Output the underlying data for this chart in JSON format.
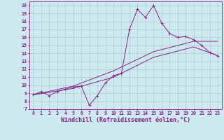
{
  "bg_color": "#cde8ee",
  "line_color": "#882288",
  "grid_color": "#aacccc",
  "xlim": [
    -0.5,
    23.5
  ],
  "ylim": [
    7,
    20.5
  ],
  "xticks": [
    0,
    1,
    2,
    3,
    4,
    5,
    6,
    7,
    8,
    9,
    10,
    11,
    12,
    13,
    14,
    15,
    16,
    17,
    18,
    19,
    20,
    21,
    22,
    23
  ],
  "yticks": [
    7,
    8,
    9,
    10,
    11,
    12,
    13,
    14,
    15,
    16,
    17,
    18,
    19,
    20
  ],
  "xlabel": "Windchill (Refroidissement éolien,°C)",
  "line1_x": [
    0,
    1,
    2,
    3,
    4,
    5,
    6,
    7,
    8,
    9,
    10,
    11,
    12,
    13,
    14,
    15,
    16,
    17,
    18,
    19,
    20,
    21,
    22,
    23
  ],
  "line1_y": [
    8.8,
    9.2,
    8.7,
    9.2,
    9.5,
    9.8,
    9.9,
    7.5,
    8.7,
    10.3,
    11.2,
    11.5,
    17.0,
    19.5,
    18.5,
    20.0,
    17.8,
    16.5,
    16.0,
    16.1,
    15.7,
    15.0,
    14.1,
    13.7
  ],
  "line2_x": [
    0,
    5,
    10,
    15,
    20,
    23
  ],
  "line2_y": [
    8.8,
    9.6,
    11.0,
    13.5,
    14.8,
    13.7
  ],
  "line3_x": [
    0,
    5,
    10,
    15,
    20,
    23
  ],
  "line3_y": [
    8.8,
    9.9,
    11.8,
    14.2,
    15.5,
    15.5
  ],
  "tick_fontsize": 4.8,
  "label_fontsize": 6.0
}
